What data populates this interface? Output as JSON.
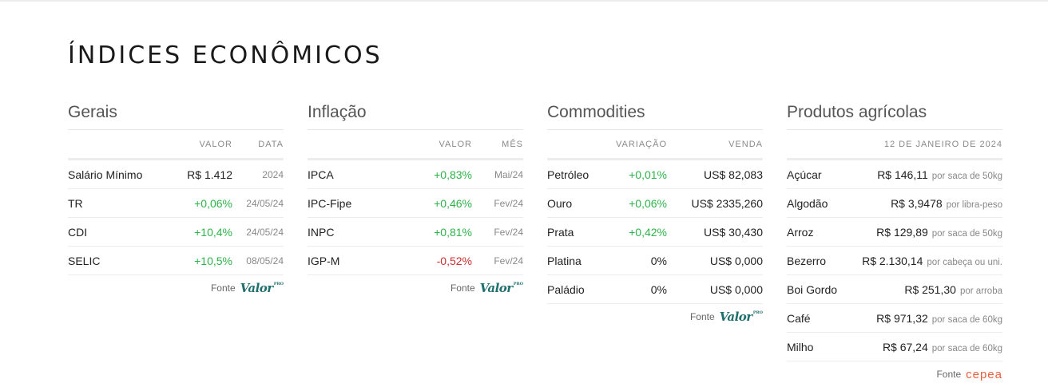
{
  "page_title": "ÍNDICES ECONÔMICOS",
  "source_label": "Fonte",
  "logos": {
    "valor": "Valor",
    "valor_sup": "PRO",
    "cepea": "cepea"
  },
  "gerais": {
    "title": "Gerais",
    "headers": {
      "valor": "VALOR",
      "data": "DATA"
    },
    "rows": [
      {
        "name": "Salário Mínimo",
        "value": "R$ 1.412",
        "date": "2024"
      },
      {
        "name": "TR",
        "value": "+0,06%",
        "date": "24/05/24"
      },
      {
        "name": "CDI",
        "value": "+10,4%",
        "date": "24/05/24"
      },
      {
        "name": "SELIC",
        "value": "+10,5%",
        "date": "08/05/24"
      }
    ]
  },
  "inflacao": {
    "title": "Inflação",
    "headers": {
      "valor": "VALOR",
      "mes": "MÊS"
    },
    "rows": [
      {
        "name": "IPCA",
        "value": "+0,83%",
        "month": "Mai/24"
      },
      {
        "name": "IPC-Fipe",
        "value": "+0,46%",
        "month": "Fev/24"
      },
      {
        "name": "INPC",
        "value": "+0,81%",
        "month": "Fev/24"
      },
      {
        "name": "IGP-M",
        "value": "-0,52%",
        "month": "Fev/24"
      }
    ]
  },
  "commodities": {
    "title": "Commodities",
    "headers": {
      "variacao": "VARIAÇÃO",
      "venda": "VENDA"
    },
    "rows": [
      {
        "name": "Petróleo",
        "variation": "+0,01%",
        "sell": "US$ 82,083"
      },
      {
        "name": "Ouro",
        "variation": "+0,06%",
        "sell": "US$ 2335,260"
      },
      {
        "name": "Prata",
        "variation": "+0,42%",
        "sell": "US$ 30,430"
      },
      {
        "name": "Platina",
        "variation": "0%",
        "sell": "US$ 0,000"
      },
      {
        "name": "Paládio",
        "variation": "0%",
        "sell": "US$ 0,000"
      }
    ]
  },
  "agricolas": {
    "title": "Produtos agrícolas",
    "date_header": "12 DE JANEIRO DE 2024",
    "rows": [
      {
        "name": "Açúcar",
        "price": "R$ 146,11",
        "unit": "por saca de 50kg"
      },
      {
        "name": "Algodão",
        "price": "R$ 3,9478",
        "unit": "por libra-peso"
      },
      {
        "name": "Arroz",
        "price": "R$ 129,89",
        "unit": "por saca de 50kg"
      },
      {
        "name": "Bezerro",
        "price": "R$ 2.130,14",
        "unit": "por cabeça ou uni."
      },
      {
        "name": "Boi Gordo",
        "price": "R$ 251,30",
        "unit": "por arroba"
      },
      {
        "name": "Café",
        "price": "R$ 971,32",
        "unit": "por saca de 60kg"
      },
      {
        "name": "Milho",
        "price": "R$ 67,24",
        "unit": "por saca de 60kg"
      }
    ]
  },
  "colors": {
    "positive": "#2db34a",
    "negative": "#cc2e2e",
    "valor_brand": "#1f6f6d",
    "cepea_brand": "#e8603c"
  }
}
